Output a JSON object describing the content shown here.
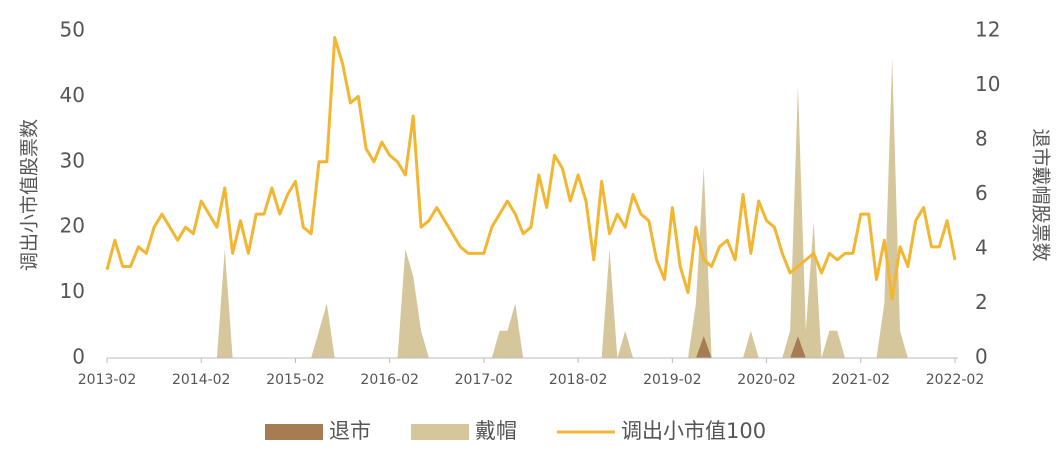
{
  "chart_data": {
    "type": "line_area",
    "ylabel": "调出小市值股票数",
    "y2label": "退市戴帽股票数",
    "categories": [
      "2013-02",
      null,
      null,
      null,
      null,
      null,
      null,
      null,
      null,
      null,
      null,
      null,
      "2014-02",
      null,
      null,
      null,
      null,
      null,
      null,
      null,
      null,
      null,
      null,
      null,
      "2015-02",
      null,
      null,
      null,
      null,
      null,
      null,
      null,
      null,
      null,
      null,
      null,
      "2016-02",
      null,
      null,
      null,
      null,
      null,
      null,
      null,
      null,
      null,
      null,
      null,
      "2017-02",
      null,
      null,
      null,
      null,
      null,
      null,
      null,
      null,
      null,
      null,
      null,
      "2018-02",
      null,
      null,
      null,
      null,
      null,
      null,
      null,
      null,
      null,
      null,
      null,
      "2019-02",
      null,
      null,
      null,
      null,
      null,
      null,
      null,
      null,
      null,
      null,
      null,
      "2020-02",
      null,
      null,
      null,
      null,
      null,
      null,
      null,
      null,
      null,
      null,
      null,
      "2021-02",
      null,
      null,
      null,
      null,
      null,
      null,
      null,
      null,
      null,
      null,
      null,
      "2022-02"
    ],
    "ylim": [
      0,
      50
    ],
    "yticks": [
      0,
      10,
      20,
      30,
      40,
      50
    ],
    "y2lim": [
      0,
      12
    ],
    "y2ticks": [
      0,
      2,
      4,
      6,
      8,
      10,
      12
    ],
    "series": [
      {
        "name": "退市",
        "color": "#a67c52",
        "kind": "area",
        "axis": "y2",
        "values": [
          0,
          0,
          0,
          0,
          0,
          0,
          0,
          0,
          0,
          0,
          0,
          0,
          0,
          0,
          0,
          0,
          0,
          0,
          0,
          0,
          0,
          0,
          0,
          0,
          0,
          0,
          0,
          0,
          0,
          0,
          0,
          0,
          0,
          0,
          0,
          0,
          0,
          0,
          0,
          0,
          0,
          0,
          0,
          0,
          0,
          0,
          0,
          0,
          0,
          0,
          0,
          0,
          0,
          0,
          0,
          0,
          0,
          0,
          0,
          0,
          0,
          0,
          0,
          0,
          0,
          0,
          0,
          0,
          0,
          0,
          0,
          0,
          0,
          0,
          0,
          0,
          0.8,
          0,
          0,
          0,
          0,
          0,
          0,
          0,
          0,
          0,
          0,
          0,
          0.8,
          0,
          0,
          0,
          0,
          0,
          0,
          0,
          0,
          0,
          0,
          0,
          0,
          0,
          0,
          0,
          0,
          0,
          0,
          0,
          0
        ]
      },
      {
        "name": "戴帽",
        "color": "#d6c69c",
        "kind": "area",
        "axis": "y2",
        "values": [
          0,
          0,
          0,
          0,
          0,
          0,
          0,
          0,
          0,
          0,
          0,
          0,
          0,
          0,
          0,
          4,
          0,
          0,
          0,
          0,
          0,
          0,
          0,
          0,
          0,
          0,
          0,
          1,
          2,
          0,
          0,
          0,
          0,
          0,
          0,
          0,
          0,
          0,
          4,
          3,
          1,
          0,
          0,
          0,
          0,
          0,
          0,
          0,
          0,
          0,
          1,
          1,
          2,
          0,
          0,
          0,
          0,
          0,
          0,
          0,
          0,
          0,
          0,
          0,
          4,
          0,
          1,
          0,
          0,
          0,
          0,
          0,
          0,
          0,
          0,
          2,
          7,
          0,
          0,
          0,
          0,
          0,
          1,
          0,
          0,
          0,
          0,
          1,
          10,
          1,
          5,
          0,
          1,
          1,
          0,
          0,
          0,
          0,
          0,
          2,
          11,
          1,
          0,
          0,
          0,
          0,
          0,
          0,
          0
        ]
      },
      {
        "name": "调出小市值100",
        "color": "#f2b632",
        "kind": "line",
        "values": [
          13.5,
          18,
          14,
          14,
          17,
          16,
          20,
          22,
          20,
          18,
          20,
          19,
          24,
          22,
          20,
          26,
          16,
          21,
          16,
          22,
          22,
          26,
          22,
          25,
          27,
          20,
          19,
          30,
          30,
          49,
          45,
          39,
          40,
          32,
          30,
          33,
          31,
          30,
          28,
          37,
          20,
          21,
          23,
          21,
          19,
          17,
          16,
          16,
          16,
          20,
          22,
          24,
          22,
          19,
          20,
          28,
          23,
          31,
          29,
          24,
          28,
          24,
          15,
          27,
          19,
          22,
          20,
          25,
          22,
          21,
          15,
          12,
          23,
          14,
          10,
          20,
          15,
          14,
          17,
          18,
          15,
          25,
          16,
          24,
          21,
          20,
          16,
          13,
          14,
          15,
          16,
          13,
          16,
          15,
          16,
          16,
          22,
          22,
          12,
          18,
          9,
          17,
          14,
          21,
          23,
          17,
          17,
          21,
          15
        ]
      }
    ]
  }
}
